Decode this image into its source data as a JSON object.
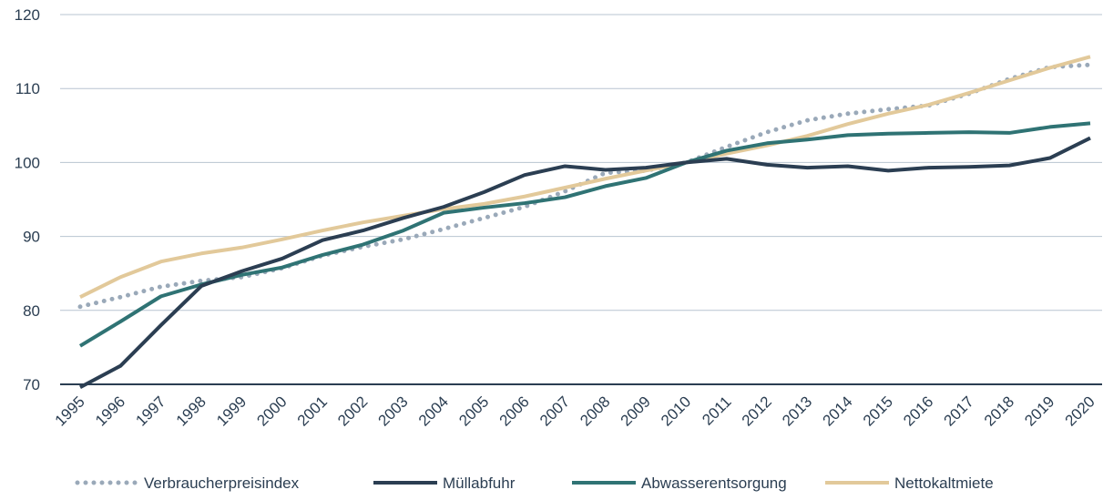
{
  "chart_data": {
    "type": "line",
    "x": [
      "1995",
      "1996",
      "1997",
      "1998",
      "1999",
      "2000",
      "2001",
      "2002",
      "2003",
      "2004",
      "2005",
      "2006",
      "2007",
      "2008",
      "2009",
      "2010",
      "2011",
      "2012",
      "2013",
      "2014",
      "2015",
      "2016",
      "2017",
      "2018",
      "2019",
      "2020"
    ],
    "ylim": [
      70,
      120
    ],
    "yticks": [
      70,
      80,
      90,
      100,
      110,
      120
    ],
    "grid": true,
    "legend": "bottom",
    "series": [
      {
        "name": "Verbraucherpreisindex",
        "color": "#9aa9b9",
        "dash": "dotted",
        "values": [
          80.5,
          81.8,
          83.2,
          84.0,
          84.5,
          85.7,
          87.4,
          88.6,
          89.6,
          91.0,
          92.5,
          94.0,
          96.1,
          98.6,
          98.9,
          100,
          102.1,
          104.1,
          105.7,
          106.6,
          107.2,
          107.7,
          109.3,
          111.3,
          112.9,
          113.2
        ]
      },
      {
        "name": "Müllabfuhr",
        "color": "#2b3e52",
        "values": [
          69.6,
          72.5,
          78.0,
          83.3,
          85.3,
          87.0,
          89.5,
          90.8,
          92.5,
          94.0,
          96.0,
          98.3,
          99.5,
          99.0,
          99.3,
          100,
          100.5,
          99.7,
          99.3,
          99.5,
          98.9,
          99.3,
          99.4,
          99.6,
          100.6,
          103.3
        ]
      },
      {
        "name": "Abwasserentsorgung",
        "color": "#2f7374",
        "values": [
          75.2,
          78.5,
          81.9,
          83.5,
          84.8,
          85.8,
          87.5,
          88.9,
          90.8,
          93.2,
          93.9,
          94.5,
          95.3,
          96.8,
          97.9,
          100,
          101.6,
          102.6,
          103.1,
          103.7,
          103.9,
          104.0,
          104.1,
          104.0,
          104.8,
          105.3
        ]
      },
      {
        "name": "Nettokaltmiete",
        "color": "#e2c99a",
        "values": [
          81.8,
          84.5,
          86.6,
          87.7,
          88.5,
          89.6,
          90.8,
          91.9,
          92.8,
          93.7,
          94.4,
          95.4,
          96.6,
          97.8,
          98.9,
          100,
          101.2,
          102.3,
          103.6,
          105.2,
          106.6,
          107.8,
          109.4,
          111.1,
          112.8,
          114.3
        ]
      }
    ]
  }
}
